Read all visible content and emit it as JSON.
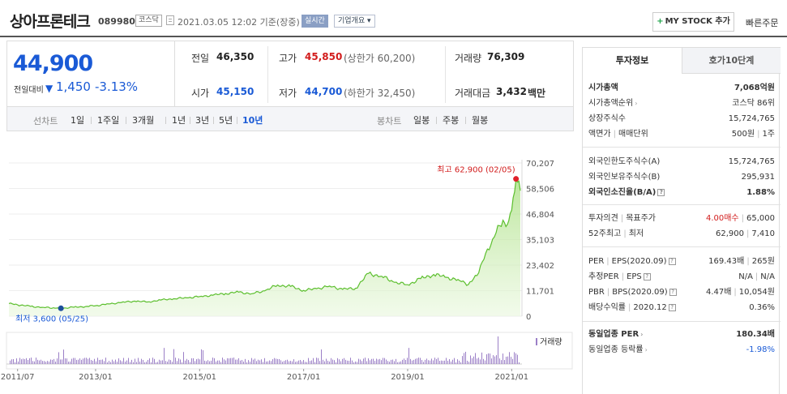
{
  "header": {
    "company_name": "상아프론테크",
    "stock_code": "089980",
    "market": "코스닥",
    "datetime": "2021.03.05 12:02  기준(장중)",
    "realtime": "실시간",
    "company_info": "기업개요",
    "mystock_label": "MY STOCK 추가",
    "quick_order": "빠른주문"
  },
  "price": {
    "current": "44,900",
    "change_label": "전일대비",
    "change_value": "1,450",
    "change_rate": "-3.13%"
  },
  "stats": {
    "prev_close_label": "전일",
    "prev_close": "46,350",
    "high_label": "고가",
    "high": "45,850",
    "upper_limit": "(상한가 60,200)",
    "volume_label": "거래량",
    "volume": "76,309",
    "open_label": "시가",
    "open": "45,150",
    "low_label": "저가",
    "low": "44,700",
    "lower_limit": "(하한가 32,450)",
    "amount_label": "거래대금",
    "amount": "3,432",
    "amount_unit": "백만"
  },
  "tabs": {
    "line_label": "선차트",
    "line_tabs": [
      "1일",
      "1주일",
      "3개월",
      "1년",
      "3년",
      "5년",
      "10년"
    ],
    "candle_label": "봉차트",
    "candle_tabs": [
      "일봉",
      "주봉",
      "월봉"
    ]
  },
  "chart_data": {
    "type": "area",
    "y_ticks": [
      "70,207",
      "58,506",
      "46,804",
      "35,103",
      "23,402",
      "11,701",
      "0"
    ],
    "ylim": [
      0,
      70207
    ],
    "x_ticks": [
      "2011/07",
      "2013/01",
      "2015/01",
      "2017/01",
      "2019/01",
      "2021/01"
    ],
    "high_label": "최고 62,900 (02/05)",
    "low_label": "최저 3,600 (05/25)",
    "volume_legend": "거래량",
    "series": [
      {
        "x": [
          "2011/05",
          "2011/07",
          "2011/10",
          "2012/01",
          "2012/04",
          "2012/05",
          "2012/08",
          "2012/11",
          "2013/01",
          "2013/04",
          "2013/07",
          "2013/10",
          "2014/01",
          "2014/04",
          "2014/07",
          "2014/10",
          "2015/01",
          "2015/04",
          "2015/07",
          "2015/10",
          "2016/01",
          "2016/04",
          "2016/07",
          "2016/10",
          "2017/01",
          "2017/04",
          "2017/07",
          "2017/10",
          "2018/01",
          "2018/04",
          "2018/07",
          "2018/10",
          "2019/01",
          "2019/04",
          "2019/07",
          "2019/10",
          "2020/01",
          "2020/03",
          "2020/05",
          "2020/07",
          "2020/09",
          "2020/11",
          "2020/12",
          "2021/01",
          "2021/02",
          "2021/03"
        ],
        "values": [
          5800,
          5200,
          4500,
          4000,
          3700,
          3600,
          4100,
          4500,
          4800,
          5600,
          6300,
          6900,
          6500,
          7400,
          8000,
          8400,
          9000,
          9600,
          10400,
          11000,
          10300,
          11600,
          14300,
          13600,
          11800,
          12600,
          13800,
          12300,
          12800,
          19600,
          18300,
          15500,
          14400,
          17200,
          19100,
          17800,
          16300,
          14500,
          18600,
          28800,
          36300,
          44000,
          42000,
          48500,
          62900,
          57500
        ]
      }
    ]
  },
  "right_panel": {
    "tab_invest": "투자정보",
    "tab_orderbook": "호가10단계",
    "market_cap_label": "시가총액",
    "market_cap": "7,068억원",
    "market_cap_rank_label": "시가총액순위",
    "market_cap_rank": "코스닥 86위",
    "shares_label": "상장주식수",
    "shares": "15,724,765",
    "par_label": "액면가",
    "trade_unit_label": "매매단위",
    "par_value": "500원",
    "trade_unit": "1주",
    "foreign_limit_label": "외국인한도주식수(A)",
    "foreign_limit": "15,724,765",
    "foreign_hold_label": "외국인보유주식수(B)",
    "foreign_hold": "295,931",
    "foreign_ratio_label": "외국인소진율(B/A)",
    "foreign_ratio": "1.88%",
    "opinion_label": "투자의견",
    "target_label": "목표주가",
    "opinion": "4.00매수",
    "target": "65,000",
    "w52_high_label": "52주최고",
    "w52_low_label": "최저",
    "w52_high": "62,900",
    "w52_low": "7,410",
    "per_label": "PER",
    "eps_label": "EPS(2020.09)",
    "per": "169.43배",
    "eps": "265원",
    "est_per_label": "추정PER",
    "est_eps_label": "EPS",
    "est_per": "N/A",
    "est_eps": "N/A",
    "pbr_label": "PBR",
    "bps_label": "BPS(2020.09)",
    "pbr": "4.47배",
    "bps": "10,054원",
    "div_label": "배당수익률",
    "div_date": "2020.12",
    "div": "0.36%",
    "sector_per_label": "동일업종 PER",
    "sector_per": "180.34배",
    "sector_chg_label": "동일업종 등락률",
    "sector_chg": "-1.98%"
  }
}
